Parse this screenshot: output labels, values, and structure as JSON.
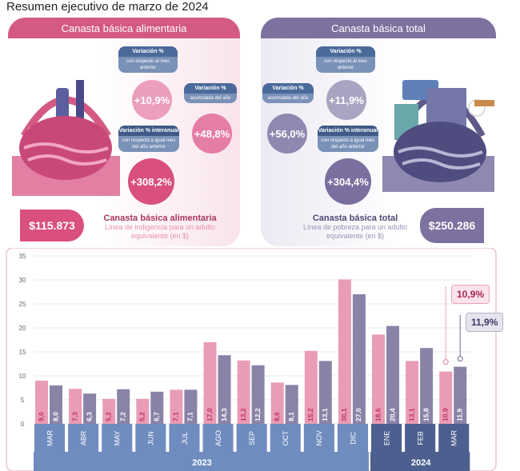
{
  "title": "Resumen ejecutivo de marzo de 2024",
  "alimentaria": {
    "header": "Canasta básica alimentaria",
    "mensual": {
      "label": "Variación %",
      "sub": "con respecto al mes anterior",
      "value": "+10,9%"
    },
    "acumulada": {
      "label": "Variación %",
      "sub": "acumulada del año",
      "value": "+48,8%"
    },
    "interanual": {
      "label": "Variación % interanual",
      "sub": "con respecto a igual mes del año anterior",
      "value": "+308,2%"
    },
    "price": "$115.873",
    "caption_title": "Canasta básica alimentaria",
    "caption_sub": "Línea de indigencia para un adulto equivalente (en $)"
  },
  "total": {
    "header": "Canasta básica total",
    "mensual": {
      "label": "Variación %",
      "sub": "con respecto al mes anterior",
      "value": "+11,9%"
    },
    "acumulada": {
      "label": "Variación %",
      "sub": "acumulada del año",
      "value": "+56,0%"
    },
    "interanual": {
      "label": "Variación % interanual",
      "sub": "con respecto a igual mes del año anterior",
      "value": "+304,4%"
    },
    "price": "$250.286",
    "caption_title": "Canasta básica total",
    "caption_sub": "Línea de pobreza para un adulto equivalente (en $)"
  },
  "colors": {
    "alimentaria": "#e99cb7",
    "total": "#8a83a8",
    "months_2023": "#6f8cbf",
    "months_2024": "#4c5f8f"
  },
  "chart_data": {
    "type": "bar",
    "categories": [
      "MAR",
      "ABR",
      "MAY",
      "JUN",
      "JUL",
      "AGO",
      "SEP",
      "OCT",
      "NOV",
      "DIC",
      "ENE",
      "FEB",
      "MAR"
    ],
    "years": [
      {
        "label": "2023",
        "months": 10
      },
      {
        "label": "2024",
        "months": 3
      }
    ],
    "series": [
      {
        "values": [
          9.0,
          7.3,
          5.2,
          5.2,
          7.1,
          17.0,
          13.2,
          8.6,
          15.2,
          30.1,
          18.6,
          13.1,
          10.9
        ]
      },
      {
        "values": [
          8.0,
          6.3,
          7.2,
          6.7,
          7.1,
          14.3,
          12.2,
          8.1,
          13.1,
          27.0,
          20.4,
          15.8,
          11.9
        ]
      }
    ],
    "value_labels": [
      [
        "9,0",
        "7,3",
        "5,2",
        "5,2",
        "7,1",
        "17,0",
        "13,2",
        "8,6",
        "15,2",
        "30,1",
        "18,6",
        "13,1",
        "10,9"
      ],
      [
        "8,0",
        "6,3",
        "7,2",
        "6,7",
        "7,1",
        "14,3",
        "12,2",
        "8,1",
        "13,1",
        "27,0",
        "20,4",
        "15,8",
        "11,9"
      ]
    ],
    "yticks": [
      0,
      5,
      10,
      15,
      20,
      25,
      30,
      35
    ],
    "ylim": [
      0,
      35
    ],
    "grid": true,
    "callouts": [
      "10,9%",
      "11,9%"
    ]
  }
}
